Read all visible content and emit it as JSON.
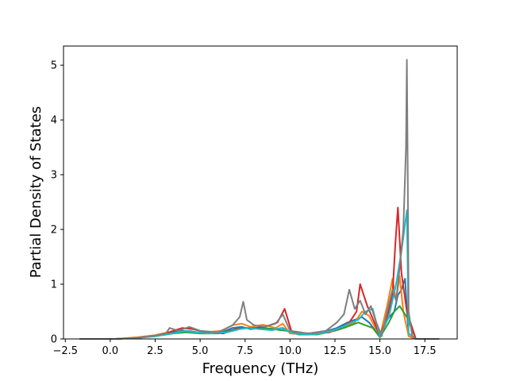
{
  "chart_data": {
    "type": "line",
    "xlabel": "Frequency (THz)",
    "ylabel": "Partial Density of States",
    "xlim": [
      -2.6,
      19.3
    ],
    "ylim": [
      0,
      5.35
    ],
    "xticks": [
      {
        "value": -2.5,
        "label": "−2.5"
      },
      {
        "value": 0.0,
        "label": "0.0"
      },
      {
        "value": 2.5,
        "label": "2.5"
      },
      {
        "value": 5.0,
        "label": "5.0"
      },
      {
        "value": 7.5,
        "label": "7.5"
      },
      {
        "value": 10.0,
        "label": "10.0"
      },
      {
        "value": 12.5,
        "label": "12.5"
      },
      {
        "value": 15.0,
        "label": "15.0"
      },
      {
        "value": 17.5,
        "label": "17.5"
      }
    ],
    "yticks": [
      {
        "value": 0,
        "label": "0"
      },
      {
        "value": 1,
        "label": "1"
      },
      {
        "value": 2,
        "label": "2"
      },
      {
        "value": 3,
        "label": "3"
      },
      {
        "value": 4,
        "label": "4"
      },
      {
        "value": 5,
        "label": "5"
      }
    ],
    "grid": false,
    "series": [
      {
        "color": "#1f77b4",
        "x": [
          -1.7,
          0.3,
          1.5,
          2.5,
          3.2,
          3.8,
          4.5,
          5.2,
          6.2,
          6.8,
          7.3,
          7.8,
          8.5,
          9.2,
          9.6,
          10.0,
          11.0,
          12.0,
          12.6,
          13.2,
          13.6,
          14.0,
          14.4,
          15.0,
          15.4,
          15.8,
          16.0,
          16.2,
          16.4,
          16.6,
          17.0,
          18.3
        ],
        "y": [
          0,
          0,
          0.02,
          0.06,
          0.1,
          0.15,
          0.14,
          0.1,
          0.12,
          0.2,
          0.22,
          0.18,
          0.2,
          0.18,
          0.2,
          0.12,
          0.1,
          0.14,
          0.2,
          0.3,
          0.35,
          0.4,
          0.3,
          0.05,
          0.35,
          0.5,
          0.8,
          0.9,
          1.1,
          0.05,
          0,
          0
        ]
      },
      {
        "color": "#ff7f0e",
        "x": [
          -1.7,
          0.3,
          1.5,
          2.5,
          3.2,
          3.8,
          4.5,
          5.2,
          6.2,
          6.8,
          7.3,
          7.8,
          8.5,
          9.2,
          9.6,
          10.0,
          11.0,
          12.0,
          12.6,
          13.2,
          13.6,
          14.0,
          14.4,
          15.0,
          15.4,
          15.7,
          15.9,
          16.1,
          16.3,
          16.6,
          17.0,
          18.3
        ],
        "y": [
          0,
          0,
          0.03,
          0.07,
          0.12,
          0.18,
          0.2,
          0.12,
          0.15,
          0.25,
          0.28,
          0.22,
          0.26,
          0.2,
          0.28,
          0.1,
          0.08,
          0.12,
          0.18,
          0.25,
          0.3,
          0.5,
          0.42,
          0.05,
          0.6,
          1.1,
          0.7,
          1.15,
          0.5,
          0.05,
          0,
          0
        ]
      },
      {
        "color": "#2ca02c",
        "x": [
          -1.7,
          0.3,
          1.5,
          2.5,
          3.5,
          4.2,
          5.0,
          6.0,
          7.0,
          7.5,
          8.2,
          9.0,
          9.8,
          10.5,
          11.5,
          12.5,
          13.0,
          13.8,
          14.2,
          14.6,
          15.0,
          15.5,
          15.8,
          16.1,
          16.5,
          17.0,
          18.3
        ],
        "y": [
          0,
          0,
          0.02,
          0.05,
          0.1,
          0.12,
          0.1,
          0.1,
          0.18,
          0.2,
          0.2,
          0.18,
          0.15,
          0.08,
          0.08,
          0.15,
          0.2,
          0.3,
          0.25,
          0.2,
          0.03,
          0.3,
          0.5,
          0.6,
          0.4,
          0,
          0
        ]
      },
      {
        "color": "#d62728",
        "x": [
          -1.7,
          0.3,
          1.5,
          2.5,
          3.3,
          4.0,
          4.6,
          5.3,
          6.3,
          7.0,
          7.5,
          8.0,
          8.6,
          9.3,
          9.7,
          10.1,
          11.2,
          12.2,
          12.8,
          13.3,
          13.7,
          13.9,
          14.3,
          14.7,
          15.0,
          15.4,
          15.7,
          15.85,
          16.0,
          16.2,
          16.5,
          17.0,
          18.3
        ],
        "y": [
          0,
          0,
          0.02,
          0.06,
          0.12,
          0.2,
          0.18,
          0.12,
          0.1,
          0.18,
          0.2,
          0.2,
          0.22,
          0.3,
          0.55,
          0.12,
          0.1,
          0.12,
          0.2,
          0.3,
          0.5,
          1.0,
          0.6,
          0.3,
          0.05,
          0.4,
          0.8,
          1.7,
          2.4,
          1.2,
          0.5,
          0,
          0
        ]
      },
      {
        "color": "#17becf",
        "x": [
          -1.7,
          0.3,
          1.5,
          2.5,
          3.4,
          4.1,
          4.8,
          5.5,
          6.5,
          7.2,
          7.7,
          8.3,
          9.0,
          9.5,
          10.2,
          11.3,
          12.3,
          12.9,
          13.4,
          13.8,
          14.2,
          14.6,
          15.0,
          15.5,
          15.9,
          16.2,
          16.4,
          16.5,
          16.6,
          17.0,
          18.3
        ],
        "y": [
          0,
          0,
          0.02,
          0.05,
          0.1,
          0.14,
          0.12,
          0.1,
          0.12,
          0.18,
          0.2,
          0.18,
          0.16,
          0.2,
          0.1,
          0.08,
          0.14,
          0.22,
          0.3,
          0.35,
          0.5,
          0.55,
          0.05,
          0.4,
          1.0,
          1.6,
          2.1,
          2.35,
          0.1,
          0,
          0
        ]
      },
      {
        "color": "#7f7f7f",
        "x": [
          -1.7,
          0.3,
          1.5,
          2.5,
          3.1,
          3.3,
          3.8,
          4.4,
          5.0,
          6.0,
          6.8,
          7.2,
          7.4,
          7.6,
          8.0,
          8.6,
          9.2,
          9.6,
          10.0,
          11.0,
          12.0,
          12.6,
          13.0,
          13.3,
          13.6,
          13.9,
          14.2,
          14.5,
          14.8,
          15.1,
          15.4,
          15.7,
          15.9,
          16.1,
          16.3,
          16.45,
          16.5,
          16.55,
          16.6,
          16.8,
          17.0,
          18.3
        ],
        "y": [
          0,
          0,
          0.02,
          0.06,
          0.1,
          0.2,
          0.15,
          0.22,
          0.15,
          0.12,
          0.25,
          0.4,
          0.68,
          0.35,
          0.25,
          0.22,
          0.28,
          0.45,
          0.15,
          0.1,
          0.15,
          0.3,
          0.45,
          0.9,
          0.55,
          0.7,
          0.45,
          0.6,
          0.3,
          0.05,
          0.5,
          0.9,
          0.7,
          1.3,
          2.0,
          3.5,
          5.1,
          3.0,
          0.5,
          0.05,
          0,
          0
        ]
      }
    ]
  }
}
